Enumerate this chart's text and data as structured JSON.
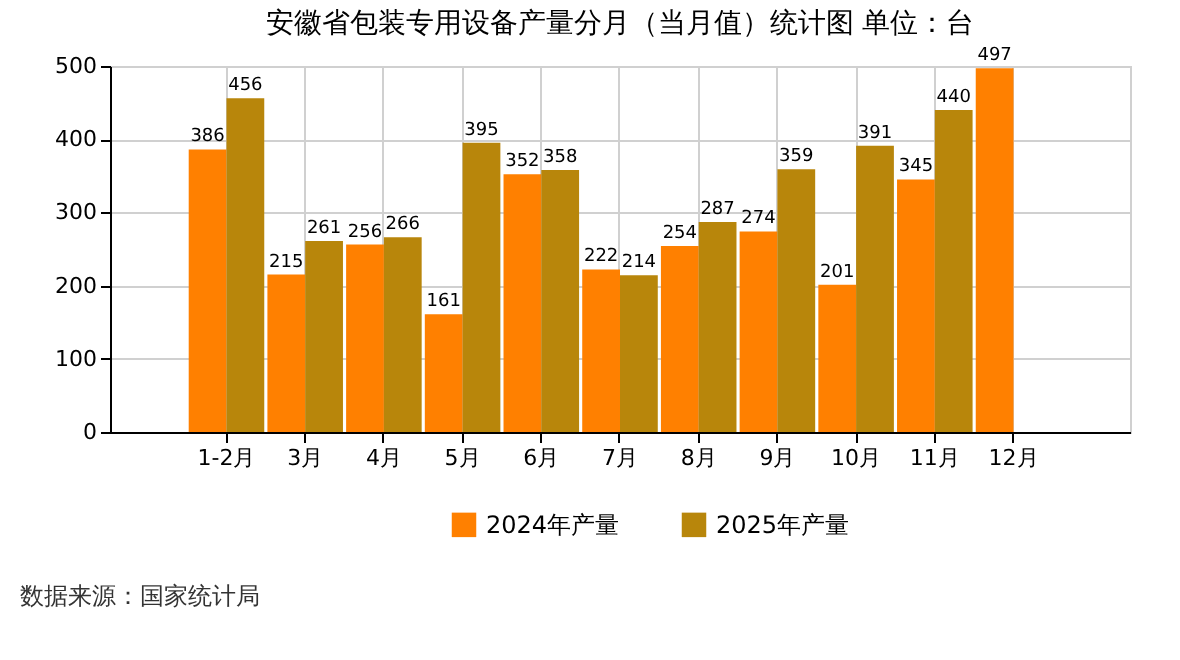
{
  "chart_data": {
    "type": "bar",
    "title": "安徽省包装专用设备产量分月（当月值）统计图 单位：台",
    "categories": [
      "1-2月",
      "3月",
      "4月",
      "5月",
      "6月",
      "7月",
      "8月",
      "9月",
      "10月",
      "11月",
      "12月"
    ],
    "series": [
      {
        "name": "2024年产量",
        "color": "#ff8000",
        "values": [
          386,
          215,
          256,
          161,
          352,
          222,
          254,
          274,
          201,
          345,
          497
        ]
      },
      {
        "name": "2025年产量",
        "color": "#b8860b",
        "values": [
          456,
          261,
          266,
          395,
          358,
          214,
          287,
          359,
          391,
          440,
          null
        ]
      }
    ],
    "ylim": [
      0,
      500
    ],
    "yticks": [
      0,
      100,
      200,
      300,
      400,
      500
    ],
    "grid": true,
    "legend": "bottom",
    "data_labels": true,
    "annotations": [
      "数据来源：国家统计局"
    ]
  }
}
